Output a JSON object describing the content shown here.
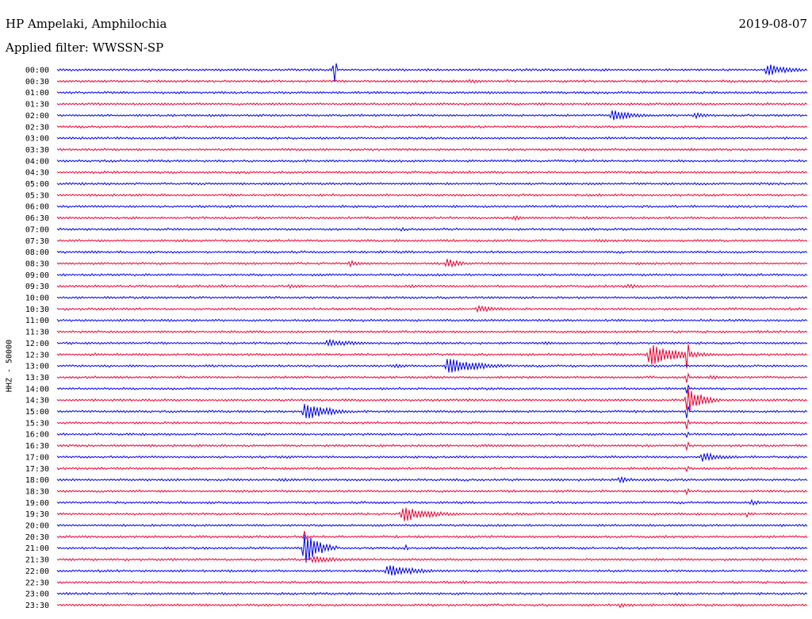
{
  "header": {
    "station": "HP Ampelaki, Amphilochia",
    "date": "2019-08-07",
    "filter": "Applied filter: WWSSN-SP"
  },
  "chart_data": {
    "type": "line",
    "title": "HP Ampelaki, Amphilochia",
    "subtitle": "Applied filter: WWSSN-SP",
    "ylabel": "HHZ - 50000",
    "xlabel": "",
    "trace_colors": [
      "#0000ee",
      "#ee0033"
    ],
    "grid": false,
    "rows": [
      {
        "label": "00:00",
        "events": [
          {
            "t": 0.37,
            "amp": 26,
            "dur": 0.01,
            "spike": true
          },
          {
            "t": 0.946,
            "amp": 8,
            "dur": 0.03
          }
        ]
      },
      {
        "label": "00:30",
        "events": [
          {
            "t": 0.12,
            "amp": 2,
            "dur": 0.005
          },
          {
            "t": 0.55,
            "amp": 3,
            "dur": 0.02
          },
          {
            "t": 0.6,
            "amp": 2,
            "dur": 0.005
          }
        ]
      },
      {
        "label": "01:00",
        "events": []
      },
      {
        "label": "01:30",
        "events": []
      },
      {
        "label": "02:00",
        "events": [
          {
            "t": 0.21,
            "amp": 1.5,
            "dur": 0.005
          },
          {
            "t": 0.74,
            "amp": 7,
            "dur": 0.03
          },
          {
            "t": 0.85,
            "amp": 4,
            "dur": 0.02
          }
        ]
      },
      {
        "label": "02:30",
        "events": []
      },
      {
        "label": "03:00",
        "events": []
      },
      {
        "label": "03:30",
        "events": [
          {
            "t": 0.32,
            "amp": 1.5,
            "dur": 0.02
          },
          {
            "t": 0.7,
            "amp": 2,
            "dur": 0.04
          }
        ]
      },
      {
        "label": "04:00",
        "events": [
          {
            "t": 0.62,
            "amp": 2,
            "dur": 0.005
          }
        ]
      },
      {
        "label": "04:30",
        "events": [
          {
            "t": 0.55,
            "amp": 2,
            "dur": 0.005
          },
          {
            "t": 0.59,
            "amp": 1.5,
            "dur": 0.005
          }
        ]
      },
      {
        "label": "05:00",
        "events": []
      },
      {
        "label": "05:30",
        "events": [
          {
            "t": 0.23,
            "amp": 2,
            "dur": 0.02
          },
          {
            "t": 0.72,
            "amp": 2,
            "dur": 0.02
          }
        ]
      },
      {
        "label": "06:00",
        "events": [
          {
            "t": 0.23,
            "amp": 2,
            "dur": 0.01
          },
          {
            "t": 0.38,
            "amp": 2,
            "dur": 0.01
          },
          {
            "t": 0.53,
            "amp": 2,
            "dur": 0.01
          }
        ]
      },
      {
        "label": "06:30",
        "events": [
          {
            "t": 0.61,
            "amp": 3,
            "dur": 0.015
          }
        ]
      },
      {
        "label": "07:00",
        "events": [
          {
            "t": 0.46,
            "amp": 4,
            "dur": 0.005,
            "spike": true
          }
        ]
      },
      {
        "label": "07:30",
        "events": [
          {
            "t": 0.45,
            "amp": 2,
            "dur": 0.03
          },
          {
            "t": 0.72,
            "amp": 2,
            "dur": 0.04
          }
        ]
      },
      {
        "label": "08:00",
        "events": [
          {
            "t": 0.05,
            "amp": 2,
            "dur": 0.01
          },
          {
            "t": 0.43,
            "amp": 2,
            "dur": 0.01
          }
        ]
      },
      {
        "label": "08:30",
        "events": [
          {
            "t": 0.39,
            "amp": 4,
            "dur": 0.02
          },
          {
            "t": 0.52,
            "amp": 6,
            "dur": 0.02
          }
        ]
      },
      {
        "label": "09:00",
        "events": []
      },
      {
        "label": "09:30",
        "events": [
          {
            "t": 0.16,
            "amp": 2,
            "dur": 0.02
          },
          {
            "t": 0.22,
            "amp": 2,
            "dur": 0.02
          },
          {
            "t": 0.31,
            "amp": 3,
            "dur": 0.02
          },
          {
            "t": 0.47,
            "amp": 2,
            "dur": 0.02
          },
          {
            "t": 0.76,
            "amp": 3,
            "dur": 0.03
          }
        ]
      },
      {
        "label": "10:00",
        "events": []
      },
      {
        "label": "10:30",
        "events": [
          {
            "t": 0.56,
            "amp": 4,
            "dur": 0.04
          }
        ]
      },
      {
        "label": "11:00",
        "events": []
      },
      {
        "label": "11:30",
        "events": []
      },
      {
        "label": "12:00",
        "events": [
          {
            "t": 0.36,
            "amp": 5,
            "dur": 0.04
          },
          {
            "t": 0.65,
            "amp": 2,
            "dur": 0.03
          },
          {
            "t": 0.8,
            "amp": 2,
            "dur": 0.03
          }
        ]
      },
      {
        "label": "12:30",
        "events": [
          {
            "t": 0.05,
            "amp": 2,
            "dur": 0.01
          },
          {
            "t": 0.31,
            "amp": 2,
            "dur": 0.01
          },
          {
            "t": 0.79,
            "amp": 14,
            "dur": 0.04
          },
          {
            "t": 0.84,
            "amp": 24,
            "dur": 0.005,
            "spike": true
          }
        ]
      },
      {
        "label": "13:00",
        "events": [
          {
            "t": 0.45,
            "amp": 3,
            "dur": 0.02
          },
          {
            "t": 0.52,
            "amp": 12,
            "dur": 0.04
          }
        ]
      },
      {
        "label": "13:30",
        "events": [
          {
            "t": 0.84,
            "amp": 14,
            "dur": 0.01,
            "spike": true
          },
          {
            "t": 0.87,
            "amp": 3,
            "dur": 0.02
          }
        ]
      },
      {
        "label": "14:00",
        "events": [
          {
            "t": 0.84,
            "amp": 10,
            "dur": 0.01,
            "spike": true
          }
        ]
      },
      {
        "label": "14:30",
        "events": [
          {
            "t": 0.84,
            "amp": 18,
            "dur": 0.02
          }
        ]
      },
      {
        "label": "15:00",
        "events": [
          {
            "t": 0.33,
            "amp": 13,
            "dur": 0.03
          },
          {
            "t": 0.61,
            "amp": 2,
            "dur": 0.01
          },
          {
            "t": 0.84,
            "amp": 12,
            "dur": 0.02,
            "spike": true
          }
        ]
      },
      {
        "label": "15:30",
        "events": [
          {
            "t": 0.84,
            "amp": 10,
            "dur": 0.005,
            "spike": true
          }
        ]
      },
      {
        "label": "16:00",
        "events": [
          {
            "t": 0.68,
            "amp": 1.5,
            "dur": 0.005
          },
          {
            "t": 0.84,
            "amp": 8,
            "dur": 0.005,
            "spike": true
          }
        ]
      },
      {
        "label": "16:30",
        "events": [
          {
            "t": 0.57,
            "amp": 2,
            "dur": 0.04
          },
          {
            "t": 0.84,
            "amp": 10,
            "dur": 0.005,
            "spike": true
          }
        ]
      },
      {
        "label": "17:00",
        "events": [
          {
            "t": 0.3,
            "amp": 2,
            "dur": 0.02
          },
          {
            "t": 0.86,
            "amp": 6,
            "dur": 0.03
          }
        ]
      },
      {
        "label": "17:30",
        "events": [
          {
            "t": 0.84,
            "amp": 8,
            "dur": 0.005,
            "spike": true
          }
        ]
      },
      {
        "label": "18:00",
        "events": [
          {
            "t": 0.3,
            "amp": 2,
            "dur": 0.03
          },
          {
            "t": 0.53,
            "amp": 2,
            "dur": 0.01
          },
          {
            "t": 0.75,
            "amp": 4,
            "dur": 0.02
          }
        ]
      },
      {
        "label": "18:30",
        "events": [
          {
            "t": 0.84,
            "amp": 6,
            "dur": 0.005,
            "spike": true
          }
        ]
      },
      {
        "label": "19:00",
        "events": [
          {
            "t": 0.925,
            "amp": 4,
            "dur": 0.015
          }
        ]
      },
      {
        "label": "19:30",
        "events": [
          {
            "t": 0.46,
            "amp": 10,
            "dur": 0.04
          },
          {
            "t": 0.92,
            "amp": 5,
            "dur": 0.01,
            "spike": true
          }
        ]
      },
      {
        "label": "20:00",
        "events": []
      },
      {
        "label": "20:30",
        "events": [
          {
            "t": 0.33,
            "amp": 10,
            "dur": 0.005,
            "spike": true
          }
        ]
      },
      {
        "label": "21:00",
        "events": [
          {
            "t": 0.33,
            "amp": 22,
            "dur": 0.02
          },
          {
            "t": 0.465,
            "amp": 7,
            "dur": 0.005,
            "spike": true
          }
        ]
      },
      {
        "label": "21:30",
        "events": [
          {
            "t": 0.34,
            "amp": 4,
            "dur": 0.05
          }
        ]
      },
      {
        "label": "22:00",
        "events": [
          {
            "t": 0.44,
            "amp": 8,
            "dur": 0.04
          },
          {
            "t": 0.59,
            "amp": 3,
            "dur": 0.005,
            "spike": true
          }
        ]
      },
      {
        "label": "22:30",
        "events": [
          {
            "t": 0.54,
            "amp": 2,
            "dur": 0.02
          }
        ]
      },
      {
        "label": "23:00",
        "events": []
      },
      {
        "label": "23:30",
        "events": [
          {
            "t": 0.5,
            "amp": 2,
            "dur": 0.01
          },
          {
            "t": 0.75,
            "amp": 3,
            "dur": 0.02
          },
          {
            "t": 0.91,
            "amp": 2,
            "dur": 0.01
          }
        ]
      }
    ]
  }
}
